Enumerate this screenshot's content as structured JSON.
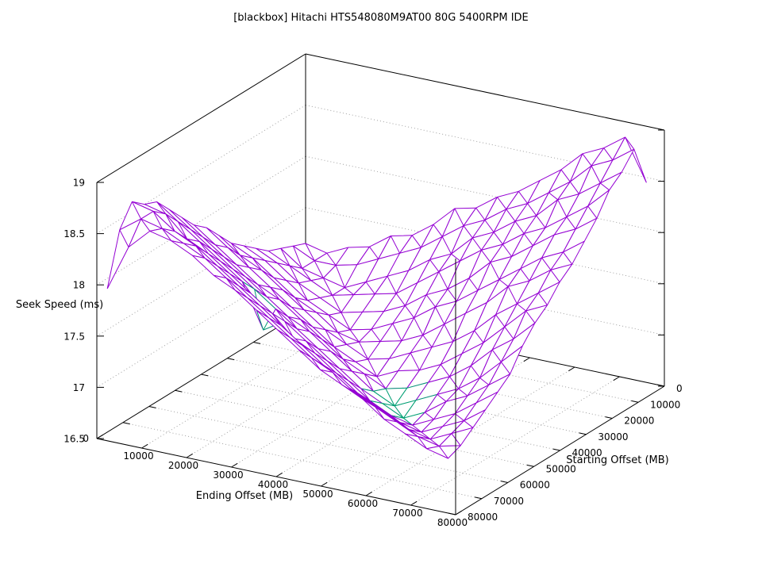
{
  "page": {
    "background": "#ffffff"
  },
  "chart_data": {
    "type": "surface3d",
    "title": "[blackbox] Hitachi HTS548080M9AT00 80G 5400RPM IDE",
    "xlabel": "Ending Offset (MB)",
    "ylabel": "Starting Offset (MB)",
    "zlabel": "Seek Speed (ms)",
    "xlim": [
      0,
      80000
    ],
    "ylim": [
      0,
      80000
    ],
    "zlim": [
      16.5,
      19
    ],
    "x_ticks": [
      0,
      10000,
      20000,
      30000,
      40000,
      50000,
      60000,
      70000,
      80000
    ],
    "y_ticks": [
      0,
      10000,
      20000,
      30000,
      40000,
      50000,
      60000,
      70000,
      80000
    ],
    "z_ticks": [
      16.5,
      17,
      17.5,
      18,
      18.5,
      19
    ],
    "grid": true,
    "legend": "none",
    "colors": {
      "surface_top": "#9400d3",
      "surface_bottom": "#009e73",
      "border": "#000000",
      "grid": "#a0a0a0",
      "text": "#000000"
    },
    "x_values": [
      0,
      4750,
      9500,
      14250,
      19000,
      23750,
      28500,
      33250,
      38000,
      42750,
      47500,
      52250,
      57000,
      61750,
      66500,
      71250,
      76000
    ],
    "y_values": [
      0,
      4750,
      9500,
      14250,
      19000,
      23750,
      28500,
      33250,
      38000,
      42750,
      47500,
      52250,
      57000,
      61750,
      66500,
      71250,
      76000
    ],
    "z_grid": [
      [
        17.15,
        17.1,
        17.2,
        17.25,
        17.4,
        17.45,
        17.6,
        17.8,
        17.85,
        18.0,
        18.1,
        18.25,
        18.4,
        18.6,
        18.7,
        18.85,
        18.45
      ],
      [
        17.2,
        17.1,
        17.1,
        17.15,
        17.25,
        17.35,
        17.45,
        17.6,
        17.75,
        17.85,
        18.0,
        18.1,
        18.25,
        18.4,
        18.6,
        18.7,
        18.85
      ],
      [
        17.25,
        17.1,
        17.05,
        17.0,
        17.1,
        17.2,
        17.3,
        17.45,
        17.55,
        17.75,
        17.85,
        18.0,
        18.1,
        18.3,
        18.4,
        18.55,
        18.7
      ],
      [
        17.3,
        17.2,
        17.1,
        17.0,
        17.05,
        17.1,
        17.15,
        17.3,
        17.45,
        17.6,
        17.75,
        17.85,
        18.0,
        18.1,
        18.25,
        18.4,
        18.6
      ],
      [
        17.4,
        17.3,
        17.15,
        17.05,
        16.95,
        17.0,
        17.05,
        17.15,
        17.3,
        17.4,
        17.55,
        17.75,
        17.85,
        18.0,
        18.15,
        18.25,
        18.4
      ],
      [
        17.5,
        17.4,
        17.25,
        17.1,
        17.0,
        16.9,
        16.95,
        17.05,
        17.15,
        17.3,
        17.4,
        17.55,
        17.7,
        17.85,
        18.0,
        18.1,
        18.25
      ],
      [
        17.6,
        17.5,
        17.35,
        17.2,
        17.1,
        16.95,
        16.9,
        16.95,
        17.0,
        17.1,
        17.25,
        17.4,
        17.55,
        17.75,
        17.85,
        18.0,
        18.1
      ],
      [
        17.75,
        17.6,
        17.5,
        17.35,
        17.2,
        17.05,
        16.95,
        16.85,
        16.9,
        17.0,
        17.1,
        17.2,
        17.35,
        17.55,
        17.7,
        17.85,
        18.0
      ],
      [
        17.9,
        17.75,
        17.6,
        17.45,
        17.3,
        17.15,
        17.0,
        16.9,
        16.8,
        16.9,
        16.95,
        17.05,
        17.2,
        17.35,
        17.55,
        17.75,
        17.85
      ],
      [
        18.0,
        17.85,
        17.7,
        17.55,
        17.45,
        17.3,
        17.15,
        17.0,
        16.9,
        16.8,
        16.85,
        16.95,
        17.05,
        17.2,
        17.4,
        17.55,
        17.75
      ],
      [
        18.15,
        18.0,
        17.85,
        17.7,
        17.55,
        17.4,
        17.3,
        17.15,
        17.0,
        16.85,
        16.75,
        16.85,
        16.95,
        17.05,
        17.2,
        17.4,
        17.6
      ],
      [
        18.3,
        18.15,
        18.0,
        17.85,
        17.7,
        17.55,
        17.4,
        17.25,
        17.1,
        16.95,
        16.85,
        16.75,
        16.85,
        17.0,
        17.1,
        17.25,
        17.4
      ],
      [
        18.45,
        18.3,
        18.15,
        18.0,
        17.85,
        17.42,
        17.55,
        17.4,
        17.25,
        17.1,
        16.95,
        16.85,
        16.8,
        16.9,
        17.0,
        17.15,
        17.3
      ],
      [
        18.5,
        18.45,
        18.25,
        18.15,
        18.0,
        17.85,
        17.7,
        17.5,
        17.4,
        17.25,
        17.1,
        17.0,
        16.9,
        16.85,
        16.95,
        17.05,
        17.2
      ],
      [
        18.6,
        18.55,
        18.4,
        18.3,
        18.15,
        18.0,
        17.85,
        17.7,
        17.55,
        17.4,
        17.25,
        17.15,
        17.05,
        16.95,
        16.9,
        17.0,
        17.1
      ],
      [
        18.4,
        18.55,
        18.5,
        18.4,
        18.3,
        18.15,
        18.0,
        17.85,
        17.7,
        17.55,
        17.45,
        17.3,
        17.2,
        17.1,
        17.0,
        16.95,
        17.0
      ],
      [
        17.9,
        18.35,
        18.55,
        18.5,
        18.4,
        18.25,
        18.15,
        18.0,
        17.85,
        17.7,
        17.55,
        17.45,
        17.35,
        17.2,
        17.1,
        17.0,
        16.95
      ]
    ]
  }
}
